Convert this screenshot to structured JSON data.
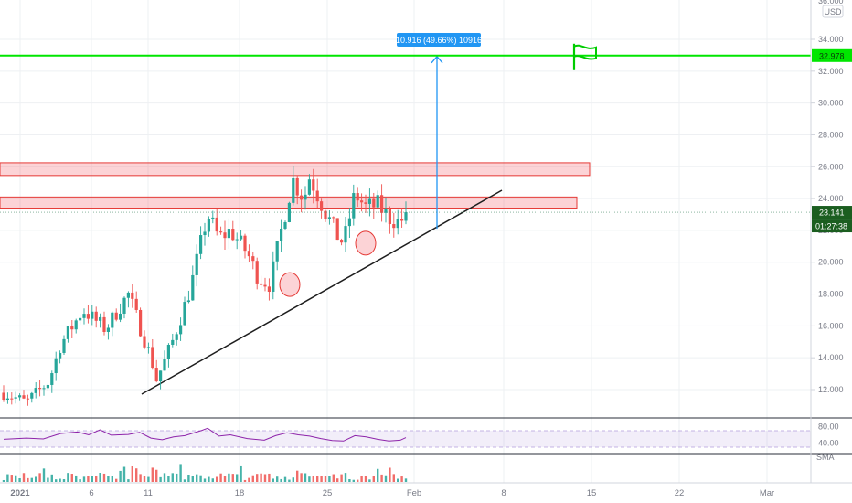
{
  "chart_data": {
    "type": "candlestick",
    "currency": "USD",
    "y_ticks": [
      "12.000",
      "14.000",
      "16.000",
      "18.000",
      "20.000",
      "22.000",
      "24.000",
      "26.000",
      "28.000",
      "30.000",
      "32.000",
      "34.000"
    ],
    "ylim": [
      10.5,
      36.2
    ],
    "x_ticks": [
      "2021",
      "6",
      "11",
      "18",
      "25",
      "Feb",
      "8",
      "15",
      "22",
      "Mar"
    ],
    "price_path": [
      [
        0,
        11.8
      ],
      [
        4,
        11.2
      ],
      [
        8,
        12.5
      ],
      [
        10,
        14.8
      ],
      [
        14,
        17.0
      ],
      [
        18,
        15.8
      ],
      [
        22,
        18.0
      ],
      [
        26,
        14.0
      ],
      [
        27,
        12.6
      ],
      [
        30,
        15.2
      ],
      [
        33,
        18.4
      ],
      [
        36,
        23.0
      ],
      [
        38,
        21.5
      ],
      [
        40,
        22.0
      ],
      [
        43,
        20.6
      ],
      [
        45,
        19.0
      ],
      [
        47,
        18.6
      ],
      [
        49,
        22.0
      ],
      [
        51,
        25.2
      ],
      [
        53,
        24.0
      ],
      [
        54,
        25.4
      ],
      [
        57,
        23.0
      ],
      [
        59,
        21.6
      ],
      [
        60,
        21.2
      ],
      [
        62,
        24.3
      ],
      [
        64,
        23.4
      ],
      [
        66,
        23.6
      ],
      [
        68,
        22.8
      ],
      [
        70,
        22.5
      ],
      [
        71,
        23.1
      ]
    ],
    "resistance_zones": [
      [
        23.4,
        24.1
      ],
      [
        25.45,
        26.25
      ]
    ],
    "target_price": "32.978",
    "target_value": 32.978,
    "current_price_label": "23.141",
    "current_price": 23.141,
    "countdown": "01:27:38",
    "measure_label": "10.916 (49.66%) 10916",
    "rsi": {
      "labels": [
        "80.00",
        "40.00"
      ],
      "path": [
        [
          0,
          49
        ],
        [
          4,
          52
        ],
        [
          7,
          50
        ],
        [
          10,
          63
        ],
        [
          13,
          67
        ],
        [
          15,
          60
        ],
        [
          17,
          72
        ],
        [
          19,
          59
        ],
        [
          22,
          61
        ],
        [
          24,
          66
        ],
        [
          26,
          52
        ],
        [
          28,
          48
        ],
        [
          30,
          55
        ],
        [
          32,
          58
        ],
        [
          35,
          71
        ],
        [
          36,
          76
        ],
        [
          38,
          57
        ],
        [
          40,
          60
        ],
        [
          43,
          51
        ],
        [
          46,
          47
        ],
        [
          48,
          58
        ],
        [
          50,
          65
        ],
        [
          52,
          60
        ],
        [
          54,
          57
        ],
        [
          56,
          51
        ],
        [
          58,
          46
        ],
        [
          60,
          45
        ],
        [
          62,
          58
        ],
        [
          64,
          55
        ],
        [
          66,
          49
        ],
        [
          68,
          45
        ],
        [
          70,
          47
        ],
        [
          71,
          53
        ]
      ]
    },
    "volume_label": "SMA"
  }
}
